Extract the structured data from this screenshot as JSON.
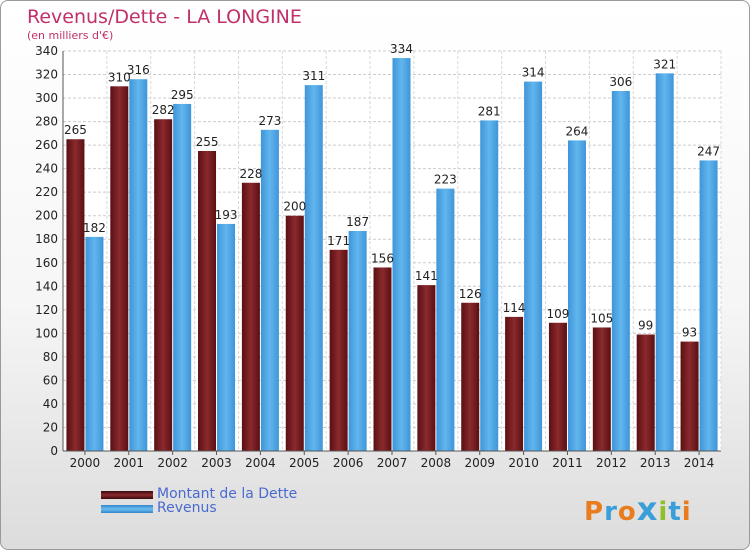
{
  "chart_data": {
    "type": "bar",
    "title": "Revenus/Dette - LA LONGINE",
    "subtitle": "(en milliers d'€)",
    "categories": [
      "2000",
      "2001",
      "2002",
      "2003",
      "2004",
      "2005",
      "2006",
      "2007",
      "2008",
      "2009",
      "2010",
      "2011",
      "2012",
      "2013",
      "2014"
    ],
    "series": [
      {
        "name": "Montant de la Dette",
        "color": "#7a1e22",
        "values": [
          265,
          310,
          282,
          255,
          228,
          200,
          171,
          156,
          141,
          126,
          114,
          109,
          105,
          99,
          93
        ]
      },
      {
        "name": "Revenus",
        "color": "#4da6e6",
        "values": [
          182,
          316,
          295,
          193,
          273,
          311,
          187,
          334,
          223,
          281,
          314,
          264,
          306,
          321,
          247
        ]
      }
    ],
    "ylim": [
      0,
      340
    ],
    "ytick_step": 20,
    "grid": true,
    "legend_position": "bottom-left"
  },
  "logo": {
    "letters": [
      "P",
      "r",
      "o",
      "x",
      "i",
      "t",
      "i"
    ],
    "colors": [
      "#e87c1e",
      "#3a9fd8",
      "#e87c1e",
      "#3a9fd8",
      "#8fbf2a",
      "#3a9fd8",
      "#e87c1e"
    ]
  }
}
